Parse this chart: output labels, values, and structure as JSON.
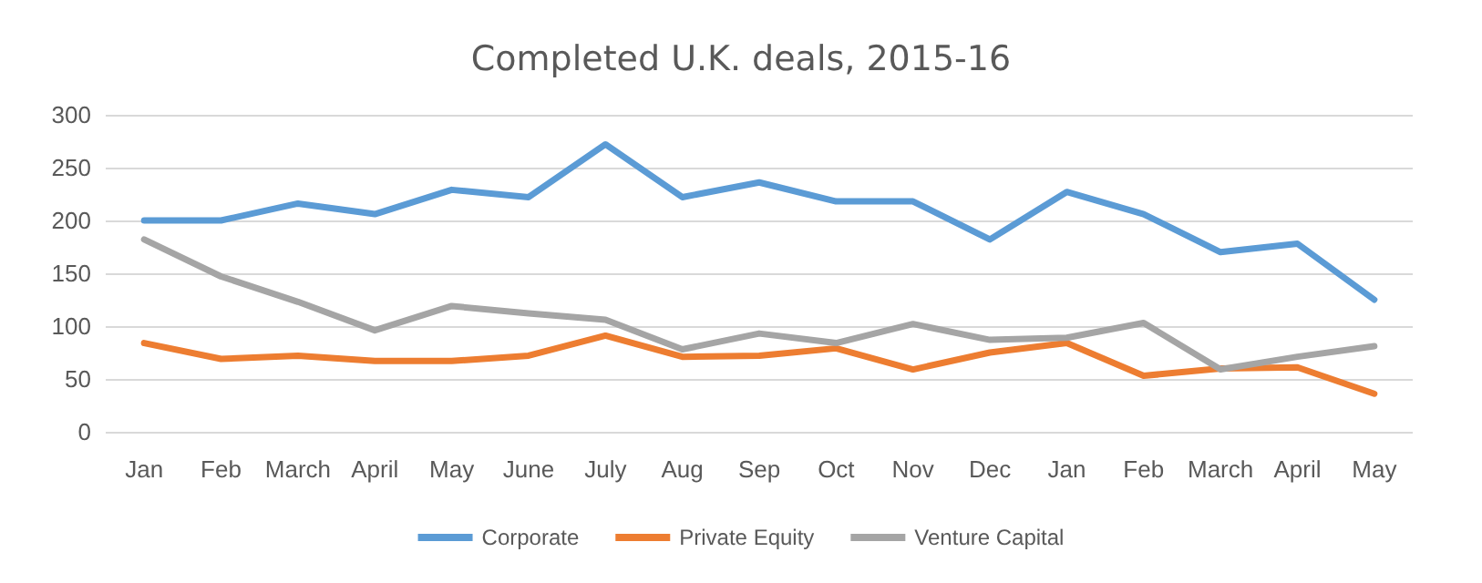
{
  "chart_data": {
    "type": "line",
    "title": "Completed U.K. deals, 2015-16",
    "categories": [
      "Jan",
      "Feb",
      "March",
      "April",
      "May",
      "June",
      "July",
      "Aug",
      "Sep",
      "Oct",
      "Nov",
      "Dec",
      "Jan",
      "Feb",
      "March",
      "April",
      "May"
    ],
    "series": [
      {
        "name": "Corporate",
        "color": "#5b9bd5",
        "values": [
          200,
          200,
          216,
          206,
          229,
          222,
          272,
          222,
          236,
          218,
          218,
          182,
          227,
          206,
          170,
          178,
          125
        ]
      },
      {
        "name": "Private Equity",
        "color": "#ed7d31",
        "values": [
          84,
          69,
          72,
          67,
          67,
          72,
          91,
          71,
          72,
          79,
          59,
          75,
          84,
          53,
          60,
          61,
          36
        ]
      },
      {
        "name": "Venture Capital",
        "color": "#a5a5a5",
        "values": [
          182,
          147,
          123,
          96,
          119,
          112,
          106,
          78,
          93,
          84,
          102,
          87,
          89,
          103,
          59,
          71,
          81
        ]
      }
    ],
    "ylim": [
      0,
      300
    ],
    "yticks": [
      0,
      50,
      100,
      150,
      200,
      250,
      300
    ],
    "grid": "y",
    "legend": "bottom",
    "marker": "none",
    "line_style": "solid"
  }
}
